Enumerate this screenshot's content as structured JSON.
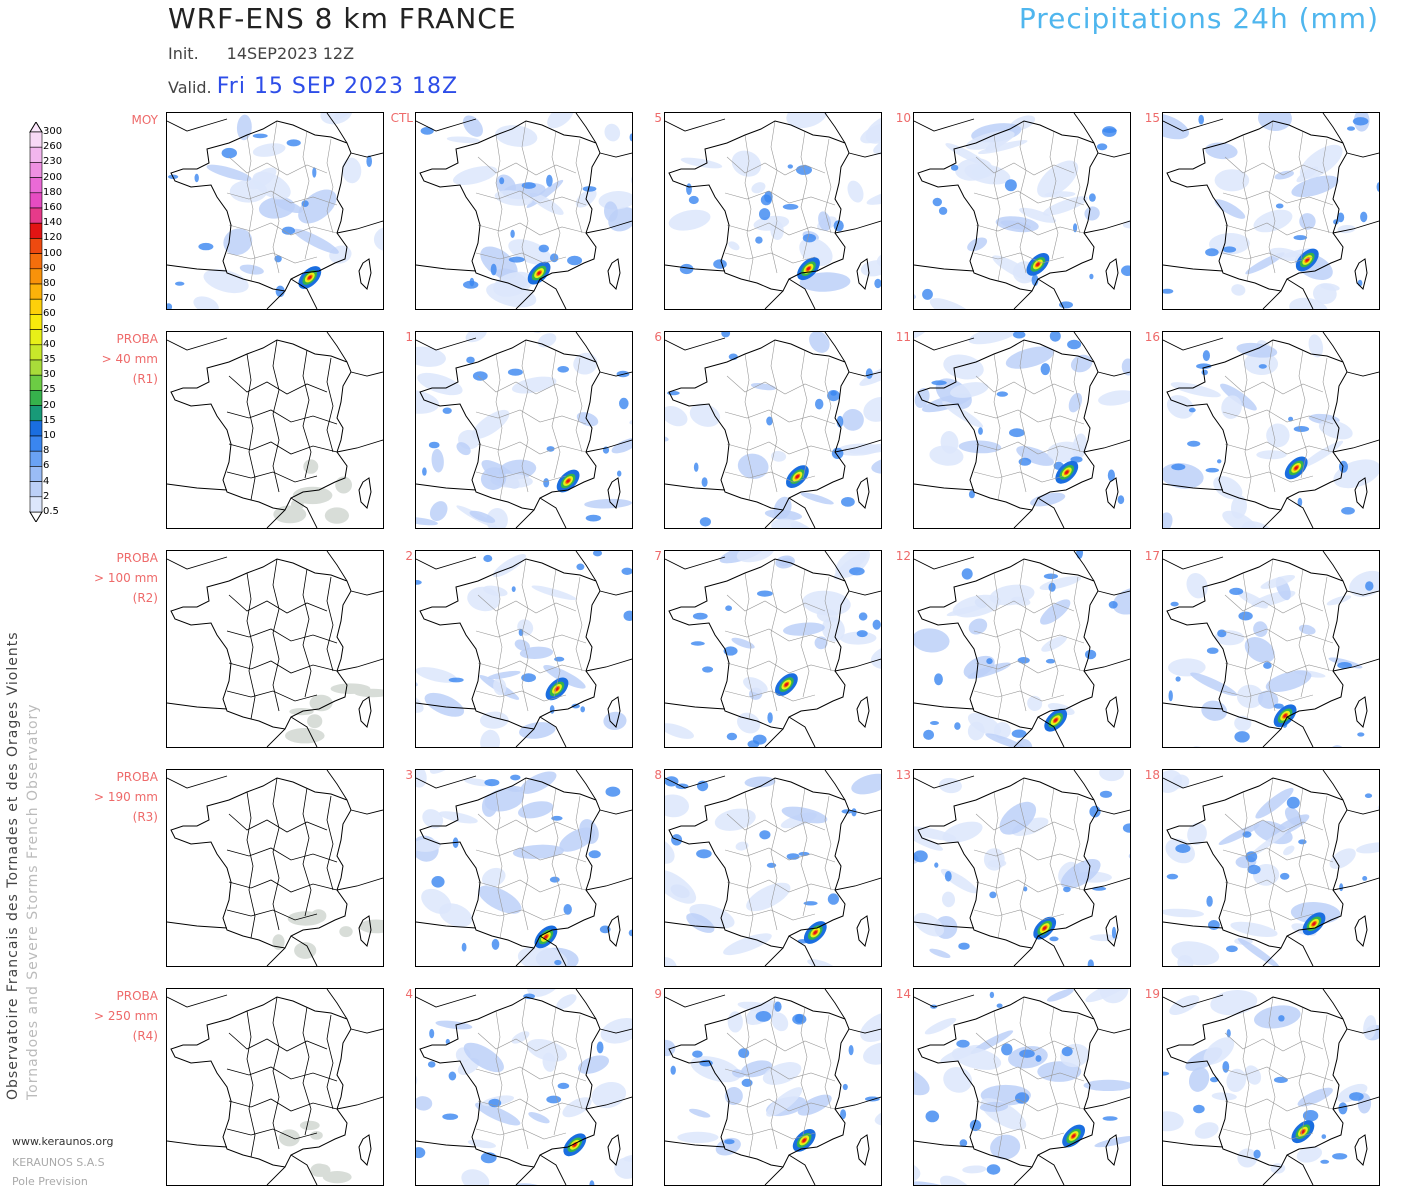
{
  "header": {
    "title": "WRF-ENS 8 km FRANCE",
    "variable": "Precipitations 24h (mm)",
    "init_label": "Init.",
    "init_value": "14SEP2023 12Z",
    "valid_label": "Valid.",
    "valid_value": "Fri 15 SEP 2023 18Z"
  },
  "row_labels": [
    {
      "lines": [
        "MOY"
      ]
    },
    {
      "lines": [
        "PROBA",
        "> 40 mm",
        "(R1)"
      ]
    },
    {
      "lines": [
        "PROBA",
        "> 100 mm",
        "(R2)"
      ]
    },
    {
      "lines": [
        "PROBA",
        "> 190 mm",
        "(R3)"
      ]
    },
    {
      "lines": [
        "PROBA",
        "> 250 mm",
        "(R4)"
      ]
    }
  ],
  "member_labels": [
    [
      "CTL",
      "5",
      "10",
      "15"
    ],
    [
      "1",
      "6",
      "11",
      "16"
    ],
    [
      "2",
      "7",
      "12",
      "17"
    ],
    [
      "3",
      "8",
      "13",
      "18"
    ],
    [
      "4",
      "9",
      "14",
      "19"
    ]
  ],
  "colorbar": {
    "labels": [
      "300",
      "260",
      "230",
      "200",
      "180",
      "160",
      "140",
      "120",
      "100",
      "90",
      "80",
      "70",
      "60",
      "50",
      "40",
      "35",
      "30",
      "25",
      "20",
      "15",
      "10",
      "8",
      "6",
      "4",
      "2",
      "0.5"
    ],
    "colors": [
      "#f8d8f6",
      "#f2b6ee",
      "#ee90e2",
      "#ea6ad6",
      "#e64cc2",
      "#e63a8a",
      "#e21414",
      "#ee4a10",
      "#f46e0c",
      "#f8920a",
      "#fcb20a",
      "#fdd00a",
      "#f8ea0c",
      "#e8f018",
      "#c8e82a",
      "#a8dc3a",
      "#6ccc44",
      "#36b24c",
      "#189a78",
      "#1a6ee0",
      "#3a86f0",
      "#6aa2f4",
      "#9abcf6",
      "#bcd0f8",
      "#dce6fc"
    ]
  },
  "sidebar": {
    "line1": "Observatoire Francais des Tornades et des Orages Violents",
    "line2": "Tornadoes and Severe Storms French Observatory"
  },
  "footer": {
    "website": "www.keraunos.org",
    "company": "KERAUNOS S.A.S",
    "unit": "Pole Prevision"
  }
}
